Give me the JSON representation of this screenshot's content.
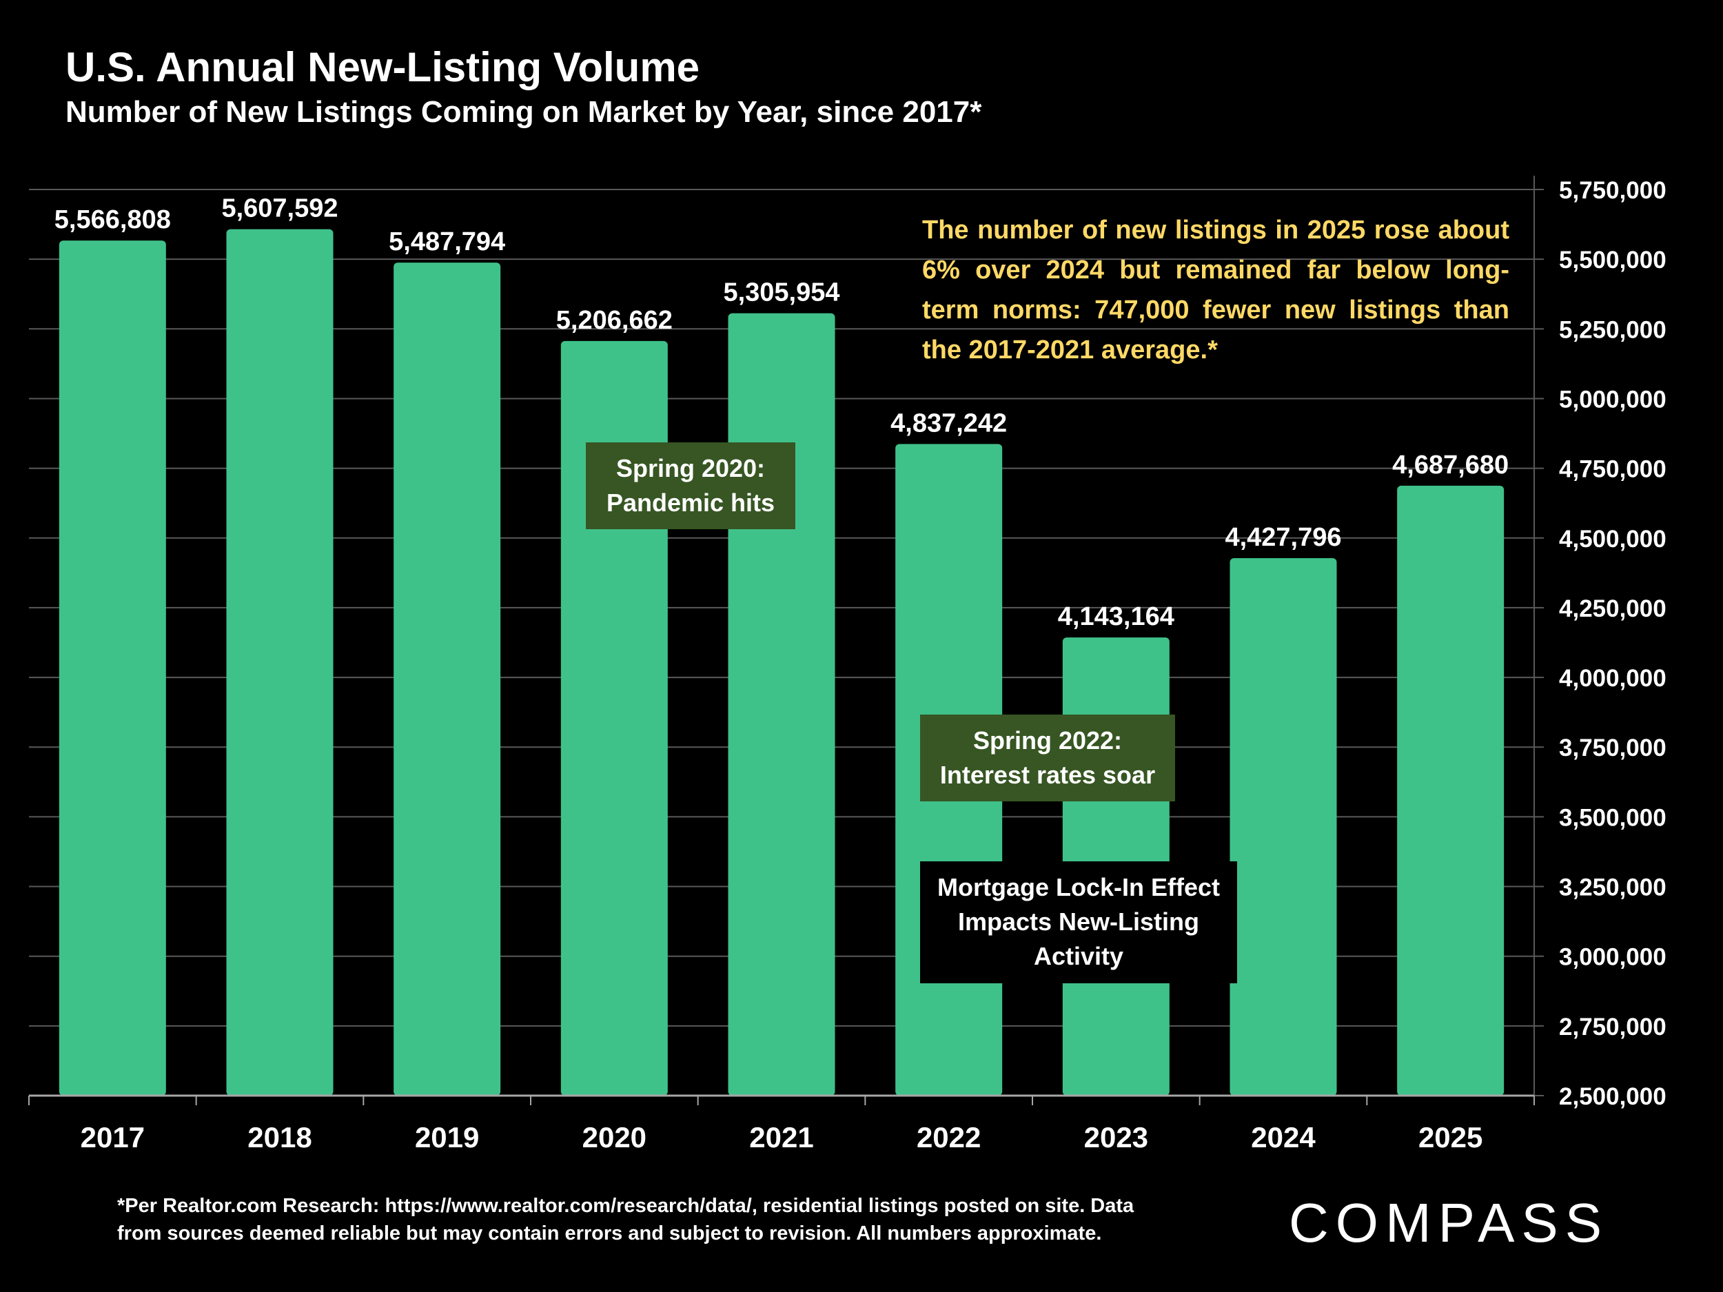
{
  "title": "U.S. Annual New-Listing Volume",
  "subtitle": "Number of New Listings Coming on Market by Year, since 2017*",
  "colors": {
    "background": "#000000",
    "bar": "#3FC28A",
    "annotation_box": "#375623",
    "insight_text": "#FFD966",
    "text": "#FFFFFF",
    "grid": "#595959"
  },
  "chart_data": {
    "type": "bar",
    "title": "U.S. Annual New-Listing Volume",
    "subtitle": "Number of New Listings Coming on Market by Year, since 2017*",
    "categories": [
      "2017",
      "2018",
      "2019",
      "2020",
      "2021",
      "2022",
      "2023",
      "2024",
      "2025"
    ],
    "values": [
      5566808,
      5607592,
      5487794,
      5206662,
      5305954,
      4837242,
      4143164,
      4427796,
      4687680
    ],
    "value_labels": [
      "5,566,808",
      "5,607,592",
      "5,487,794",
      "5,206,662",
      "5,305,954",
      "4,837,242",
      "4,143,164",
      "4,427,796",
      "4,687,680"
    ],
    "ylim": [
      2500000,
      5750000
    ],
    "yticks": [
      2500000,
      2750000,
      3000000,
      3250000,
      3500000,
      3750000,
      4000000,
      4250000,
      4500000,
      4750000,
      5000000,
      5250000,
      5500000,
      5750000
    ],
    "ytick_labels": [
      "2,500,000",
      "2,750,000",
      "3,000,000",
      "3,250,000",
      "3,500,000",
      "3,750,000",
      "4,000,000",
      "4,250,000",
      "4,500,000",
      "4,750,000",
      "5,000,000",
      "5,250,000",
      "5,500,000",
      "5,750,000"
    ],
    "yaxis_side": "right",
    "grid": true,
    "xlabel": "",
    "ylabel": ""
  },
  "annotations": {
    "pandemic": {
      "line1": "Spring 2020:",
      "line2": "Pandemic hits"
    },
    "rates": {
      "line1": "Spring 2022:",
      "line2": "Interest rates soar"
    },
    "lockin": {
      "line1": "Mortgage Lock-In Effect",
      "line2": "Impacts New-Listing",
      "line3": "Activity"
    }
  },
  "insight": "The number of new listings in 2025 rose about 6% over 2024 but remained far below long-term norms: 747,000 fewer new listings than the 2017-2021 average.*",
  "footnote": {
    "line1": "*Per Realtor.com Research: https://www.realtor.com/research/data/, residential listings posted on site. Data",
    "line2": "from sources deemed reliable but may contain errors and subject to revision. All numbers approximate."
  },
  "logo": "COMPASS"
}
